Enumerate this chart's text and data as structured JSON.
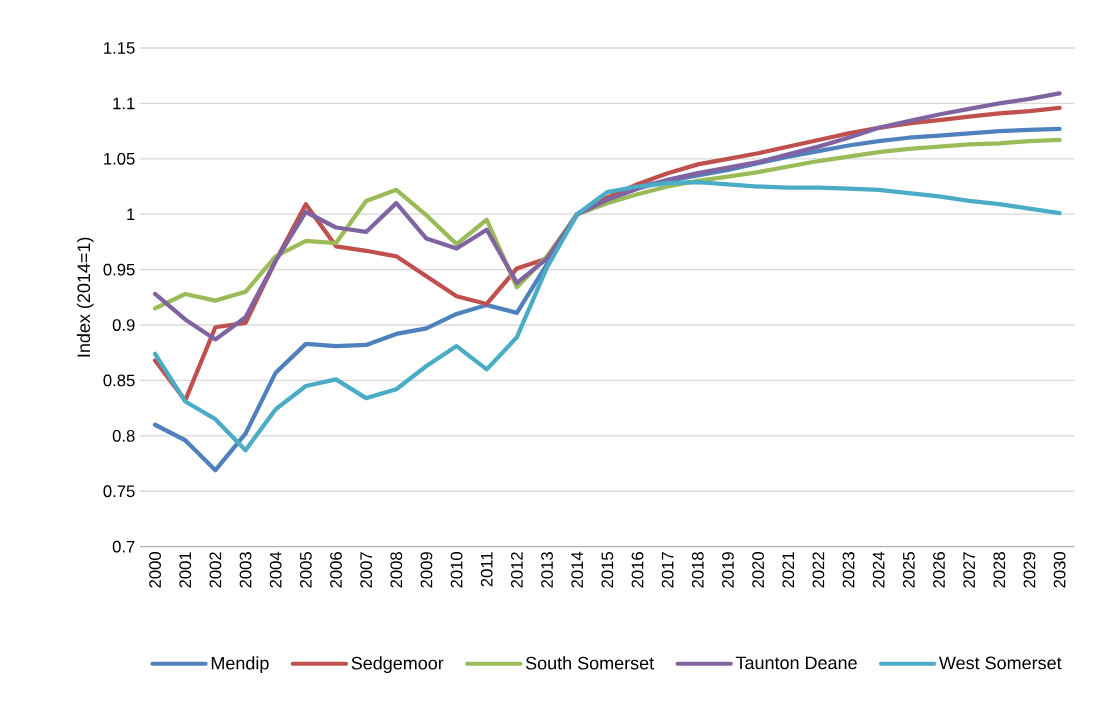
{
  "chart_data": {
    "type": "line",
    "ylabel": "Index (2014=1)",
    "categories": [
      "2000",
      "2001",
      "2002",
      "2003",
      "2004",
      "2005",
      "2006",
      "2007",
      "2008",
      "2009",
      "2010",
      "2011",
      "2012",
      "2013",
      "2014",
      "2015",
      "2016",
      "2017",
      "2018",
      "2019",
      "2020",
      "2021",
      "2022",
      "2023",
      "2024",
      "2025",
      "2026",
      "2027",
      "2028",
      "2029",
      "2030"
    ],
    "series": [
      {
        "name": "Mendip",
        "color": "#4f81bd",
        "values": [
          0.81,
          0.796,
          0.769,
          0.802,
          0.857,
          0.883,
          0.881,
          0.882,
          0.892,
          0.897,
          0.91,
          0.918,
          0.911,
          0.955,
          1.0,
          1.015,
          1.025,
          1.03,
          1.035,
          1.04,
          1.046,
          1.052,
          1.057,
          1.062,
          1.066,
          1.069,
          1.071,
          1.073,
          1.075,
          1.076,
          1.077
        ]
      },
      {
        "name": "Sedgemoor",
        "color": "#c0504d",
        "values": [
          0.868,
          0.832,
          0.898,
          0.902,
          0.958,
          1.009,
          0.971,
          0.967,
          0.962,
          0.944,
          0.926,
          0.919,
          0.951,
          0.96,
          1.0,
          1.015,
          1.027,
          1.037,
          1.045,
          1.05,
          1.055,
          1.061,
          1.067,
          1.073,
          1.078,
          1.082,
          1.085,
          1.088,
          1.091,
          1.093,
          1.096
        ]
      },
      {
        "name": "South Somerset",
        "color": "#9bbb59",
        "values": [
          0.915,
          0.928,
          0.922,
          0.93,
          0.962,
          0.976,
          0.974,
          1.012,
          1.022,
          0.999,
          0.973,
          0.995,
          0.934,
          0.962,
          1.0,
          1.01,
          1.018,
          1.025,
          1.03,
          1.034,
          1.038,
          1.043,
          1.048,
          1.052,
          1.056,
          1.059,
          1.061,
          1.063,
          1.064,
          1.066,
          1.067
        ]
      },
      {
        "name": "Taunton Deane",
        "color": "#8064a2",
        "values": [
          0.928,
          0.905,
          0.887,
          0.907,
          0.958,
          1.002,
          0.988,
          0.984,
          1.01,
          0.978,
          0.969,
          0.986,
          0.938,
          0.96,
          1.0,
          1.013,
          1.023,
          1.031,
          1.037,
          1.042,
          1.047,
          1.054,
          1.061,
          1.069,
          1.078,
          1.084,
          1.09,
          1.095,
          1.1,
          1.104,
          1.109
        ]
      },
      {
        "name": "West Somerset",
        "color": "#4bacc6",
        "values": [
          0.874,
          0.831,
          0.815,
          0.787,
          0.824,
          0.845,
          0.851,
          0.834,
          0.842,
          0.863,
          0.881,
          0.86,
          0.889,
          0.952,
          1.0,
          1.02,
          1.025,
          1.028,
          1.029,
          1.027,
          1.025,
          1.024,
          1.024,
          1.023,
          1.022,
          1.019,
          1.016,
          1.012,
          1.009,
          1.005,
          1.001
        ]
      }
    ],
    "ylim": [
      0.7,
      1.15
    ],
    "yticks": [
      0.7,
      0.75,
      0.8,
      0.85,
      0.9,
      0.95,
      1,
      1.05,
      1.1,
      1.15
    ],
    "grid": "y",
    "legend": "bottom",
    "marker": "none",
    "line_style": "solid"
  }
}
